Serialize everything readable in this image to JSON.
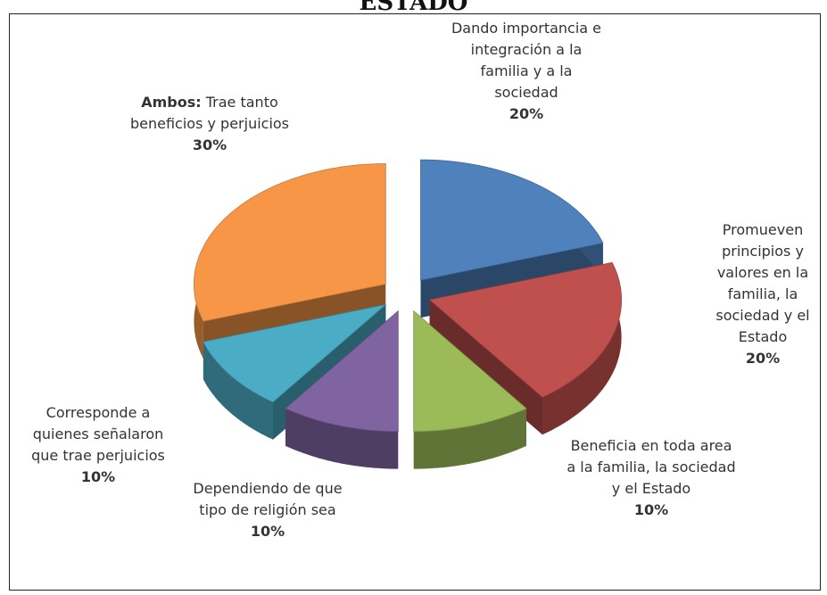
{
  "chart_data": {
    "type": "pie3d",
    "title": "ESTADO",
    "categories": [
      "Dando importancia e integración a la familia y  a la sociedad",
      "Promueven principios y valores en la familia, la sociedad y el Estado",
      "Beneficia en toda area a la familia, la sociedad y el Estado",
      "Dependiendo de que tipo de religión sea",
      "Corresponde a quienes señalaron que trae perjuicios",
      "Ambos: Trae tanto beneficios y perjuicios"
    ],
    "values": [
      20,
      20,
      10,
      10,
      10,
      30
    ],
    "value_labels": [
      "20%",
      "20%",
      "10%",
      "10%",
      "10%",
      "30%"
    ],
    "colors": [
      "#4f81bd",
      "#c0504d",
      "#9bbb59",
      "#8064a2",
      "#4bacc6",
      "#f79646"
    ]
  }
}
